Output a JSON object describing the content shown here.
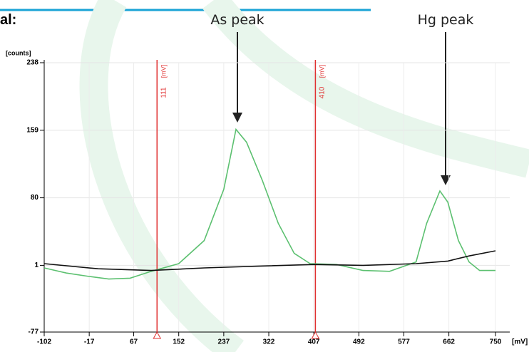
{
  "heading": "al:",
  "chart_data": {
    "type": "line",
    "y_label": "[counts]",
    "x_label": "[mV]",
    "xlim": [
      -102,
      750
    ],
    "ylim": [
      -77,
      238
    ],
    "xticks": [
      -102,
      -17,
      67,
      152,
      237,
      322,
      407,
      492,
      577,
      662,
      750
    ],
    "yticks": [
      -77,
      1,
      80,
      159,
      238
    ],
    "grid": true,
    "markers": [
      111,
      410
    ],
    "marker_unit": "[mV]",
    "marker_color": "#e03030",
    "annotations": [
      "As peak",
      "Hg peak"
    ],
    "series": [
      {
        "color": "#5cc070",
        "x": [
          -102,
          -60,
          -17,
          20,
          60,
          100,
          152,
          200,
          237,
          260,
          280,
          310,
          340,
          370,
          400,
          450,
          500,
          550,
          600,
          620,
          645,
          660,
          680,
          700,
          720,
          750
        ],
        "values": [
          -2,
          -8,
          -12,
          -15,
          -14,
          -6,
          3,
          30,
          90,
          160,
          145,
          100,
          50,
          15,
          3,
          2,
          -5,
          -6,
          5,
          50,
          88,
          75,
          30,
          5,
          -5,
          -5
        ]
      },
      {
        "color": "#111111",
        "x": [
          -102,
          0,
          100,
          200,
          300,
          407,
          500,
          600,
          660,
          700,
          750
        ],
        "values": [
          3,
          -3,
          -5,
          -2,
          0,
          2,
          1,
          3,
          6,
          12,
          18
        ]
      }
    ]
  }
}
